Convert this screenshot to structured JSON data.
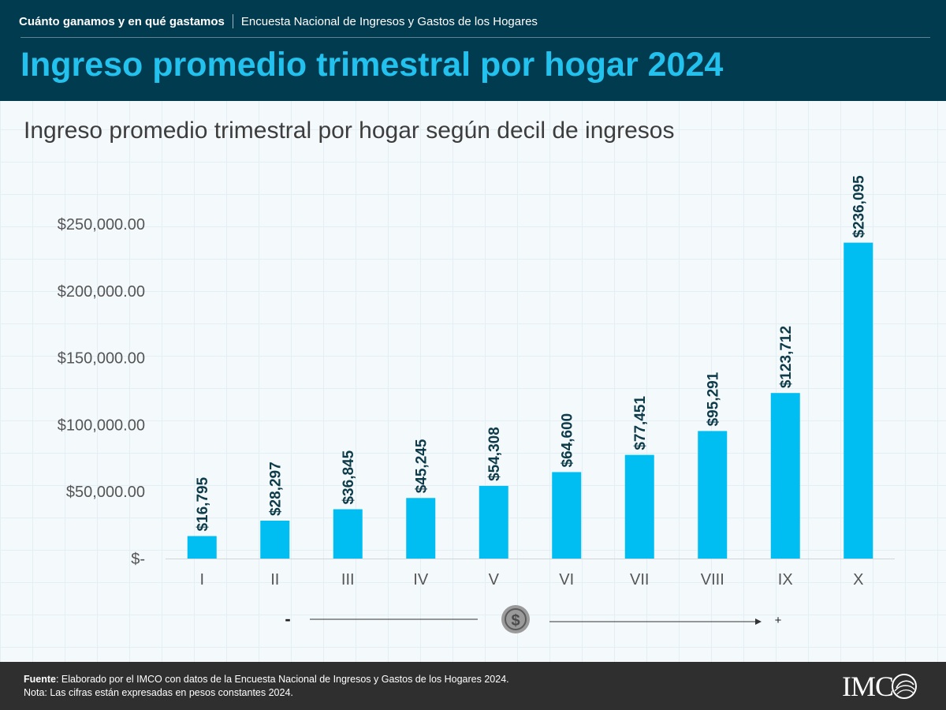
{
  "header": {
    "kicker_bold": "Cuánto ganamos y en qué gastamos",
    "kicker_rest": "Encuesta Nacional de Ingresos y Gastos de los Hogares",
    "title": "Ingreso promedio trimestral por hogar 2024"
  },
  "chart_data": {
    "type": "bar",
    "title": "Ingreso promedio trimestral por hogar según decil de ingresos",
    "xlabel": "",
    "ylabel": "",
    "categories": [
      "I",
      "II",
      "III",
      "IV",
      "V",
      "VI",
      "VII",
      "VIII",
      "IX",
      "X"
    ],
    "values": [
      16795,
      28297,
      36845,
      45245,
      54308,
      64600,
      77451,
      95291,
      123712,
      236095
    ],
    "data_labels": [
      "$16,795",
      "$28,297",
      "$36,845",
      "$45,245",
      "$54,308",
      "$64,600",
      "$77,451",
      "$95,291",
      "$123,712",
      "$236,095"
    ],
    "ylim": [
      0,
      250000
    ],
    "yticks": [
      0,
      50000,
      100000,
      150000,
      200000,
      250000
    ],
    "ytick_labels": [
      "$-",
      "$50,000.00",
      "$100,000.00",
      "$150,000.00",
      "$200,000.00",
      "$250,000.00"
    ],
    "grid": false,
    "legend": "none",
    "bar_color": "#00bdf2",
    "label_color": "#0d3b4a"
  },
  "scale": {
    "low_label": "-",
    "high_label": "+",
    "icon": "dollar-coin-icon"
  },
  "footer": {
    "source_label": "Fuente",
    "source_text": ": Elaborado por el IMCO con datos de la Encuesta Nacional de Ingresos y Gastos de los Hogares 2024.",
    "note": "Nota: Las cifras están expresadas en pesos constantes 2024.",
    "logo_text": "IMC"
  },
  "colors": {
    "header_bg": "#003b4f",
    "title": "#22c1ee",
    "footer_bg": "#2f2f2f"
  }
}
